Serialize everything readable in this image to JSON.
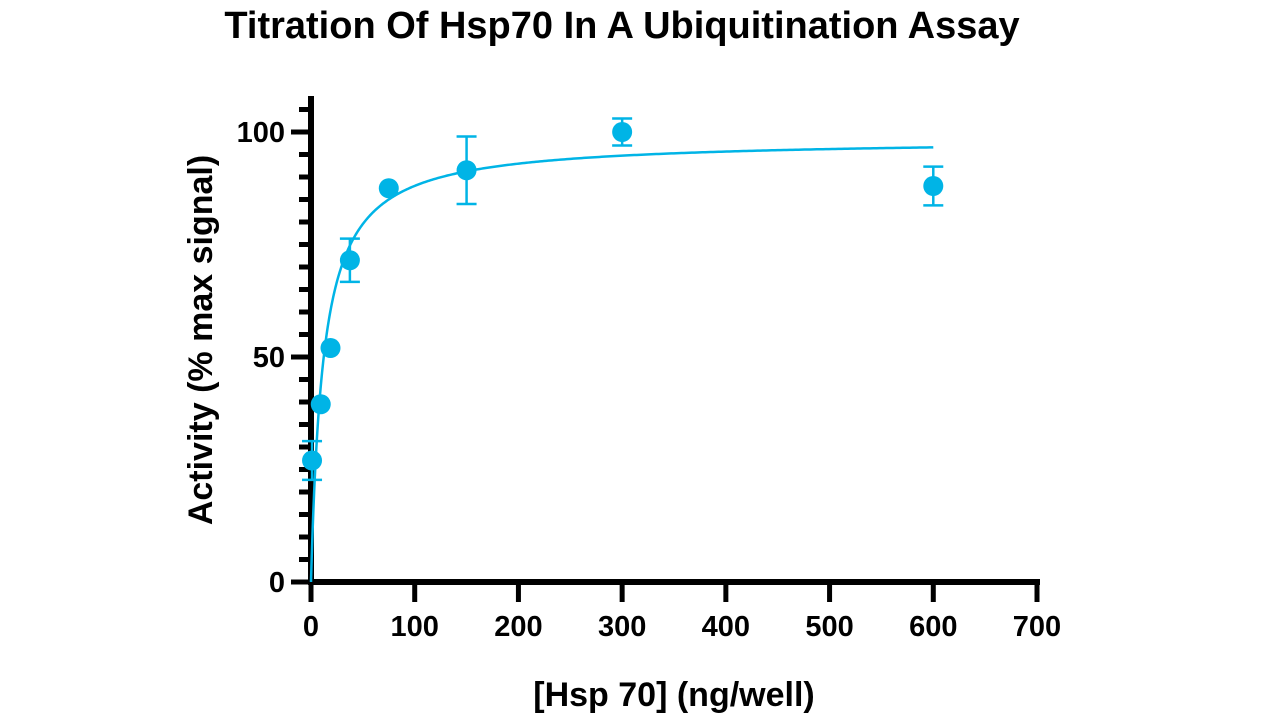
{
  "chart_data": {
    "type": "scatter",
    "title": "Titration Of Hsp70 In A Ubiquitination Assay",
    "xlabel": "[Hsp 70] (ng/well)",
    "ylabel": "Activity (% max signal)",
    "xlim": [
      0,
      700
    ],
    "ylim": [
      0,
      100
    ],
    "x_ticks": [
      0,
      100,
      200,
      300,
      400,
      500,
      600,
      700
    ],
    "y_ticks": [
      0,
      50,
      100
    ],
    "y_minor_step": 5,
    "grid": false,
    "legend": "none",
    "series": [
      {
        "x": [
          1,
          9.4,
          18.8,
          37.5,
          75,
          150,
          300,
          600
        ],
        "y": [
          27,
          39.5,
          52,
          71.5,
          87.5,
          91.5,
          100,
          88
        ],
        "error": [
          4.3,
          null,
          null,
          4.8,
          null,
          7.5,
          3,
          4.3
        ],
        "color": "#00b4e6"
      }
    ],
    "fit": {
      "model": "hyperbola",
      "ymax": 98.5,
      "k": 11.9,
      "x_range": [
        0,
        600
      ],
      "color": "#00b4e6"
    }
  }
}
